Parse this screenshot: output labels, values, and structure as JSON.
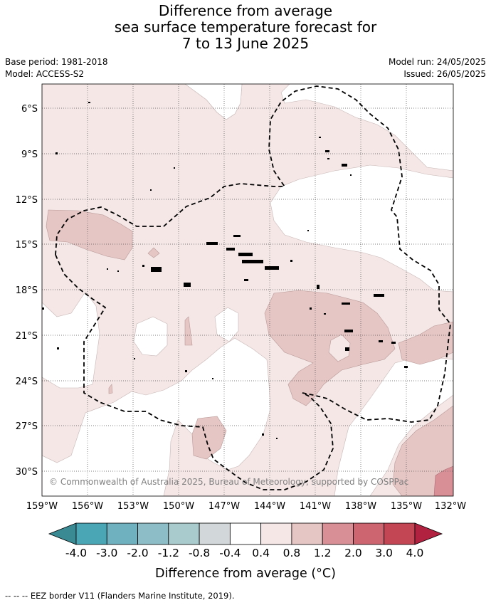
{
  "title": {
    "line1": "Difference from average",
    "line2": "sea surface temperature forecast for",
    "line3": "7 to 13 June 2025"
  },
  "meta": {
    "base_period": "Base period: 1981-2018",
    "model": "Model: ACCESS-S2",
    "model_run": "Model run: 24/05/2025",
    "issued": "Issued: 26/05/2025"
  },
  "map": {
    "copyright": "© Commonwealth of Australia 2025, Bureau of Meteorology, supported by COSPPac",
    "lat_labels": [
      "6°S",
      "9°S",
      "12°S",
      "15°S",
      "18°S",
      "21°S",
      "24°S",
      "27°S",
      "30°S"
    ],
    "lon_labels": [
      "159°W",
      "156°W",
      "153°W",
      "150°W",
      "147°W",
      "144°W",
      "141°W",
      "138°W",
      "135°W",
      "132°W"
    ],
    "colors": {
      "anom_0_4_0_8": "#f4e7e6",
      "anom_0_8_1_2": "#e6c6c4",
      "anom_1_2_2_0": "#d88f96",
      "eez": "#000000"
    }
  },
  "colorbar": {
    "title": "Difference from average (°C)",
    "tick_labels": [
      "-4.0",
      "-3.0",
      "-2.0",
      "-1.2",
      "-0.8",
      "-0.4",
      "0.4",
      "0.8",
      "1.2",
      "2.0",
      "3.0",
      "4.0"
    ],
    "colors": [
      "#3a8a94",
      "#4aa5b4",
      "#70b1bf",
      "#8dbec8",
      "#a9cbce",
      "#d2d8da",
      "#ffffff",
      "#f4e7e6",
      "#e6c6c4",
      "#d88f96",
      "#cd6570",
      "#c34655",
      "#b02240"
    ]
  },
  "footer": {
    "eez_legend": "-- -- -- EEZ border V11 (Flanders Marine Institute, 2019)."
  }
}
